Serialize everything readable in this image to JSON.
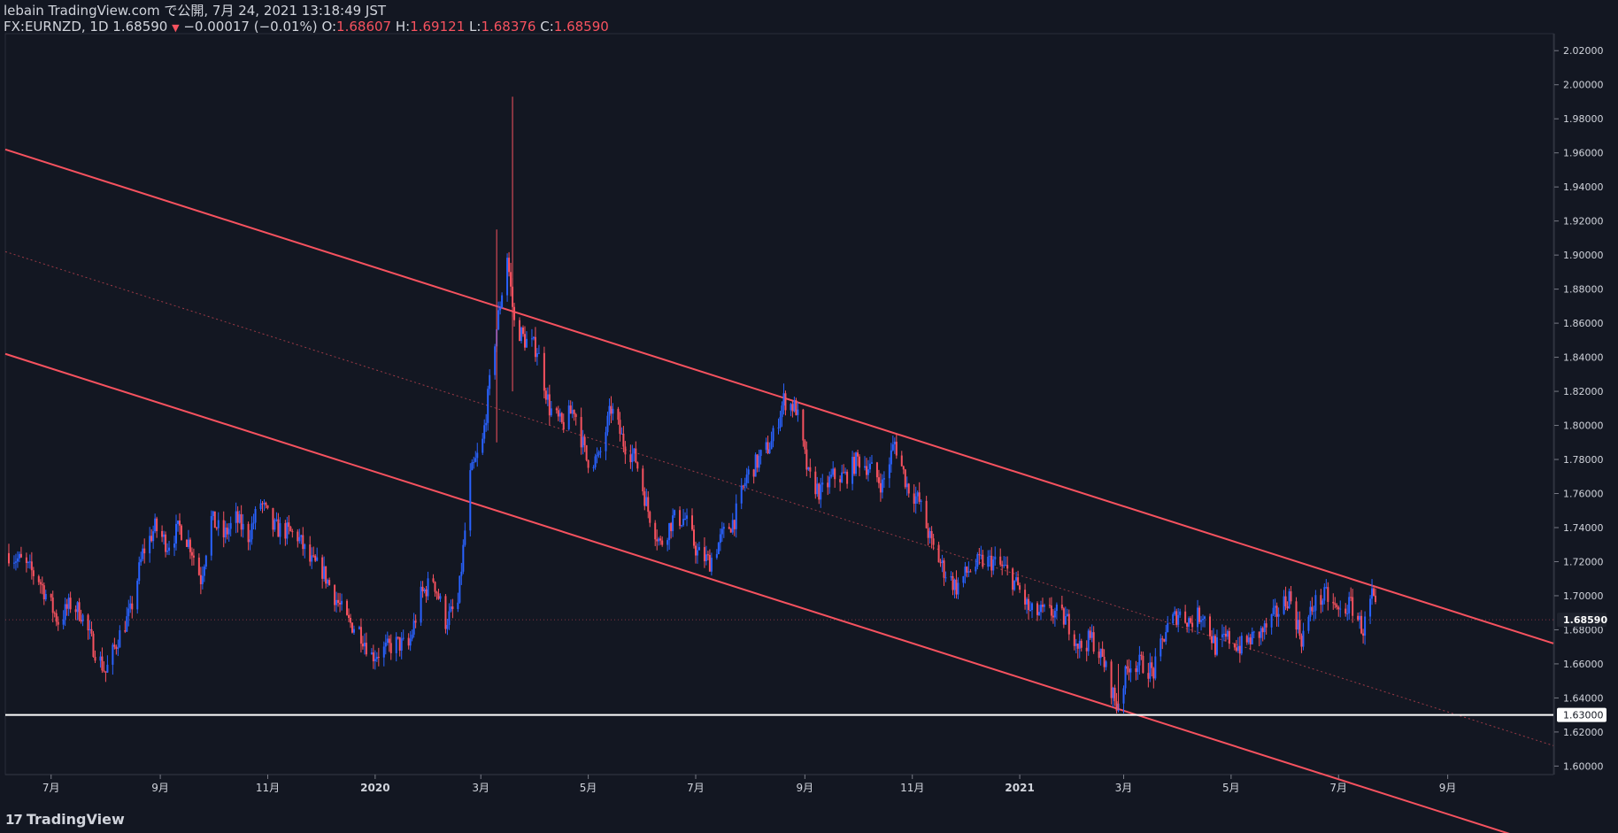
{
  "header": {
    "line1": "lebain TradingView.com で公開, 7月 24, 2021 13:18:49 JST",
    "symbol": "FX:EURNZD, 1D",
    "last": "1.68590",
    "change_arrow": "▼",
    "change": "−0.00017 (−0.01%)",
    "o_label": "O:",
    "o_value": "1.68607",
    "h_label": "H:",
    "h_value": "1.69121",
    "l_label": "L:",
    "l_value": "1.68376",
    "c_label": "C:",
    "c_value": "1.68590"
  },
  "footer": {
    "brand": "TradingView",
    "mark": "17"
  },
  "colors": {
    "background": "#131722",
    "up": "#2962ff",
    "down": "#f7525f",
    "trendline": "#f7525f",
    "hline": "#ffffff",
    "text": "#d1d4dc"
  },
  "chart_data": {
    "type": "candlestick",
    "symbol": "FX:EURNZD",
    "interval": "1D",
    "ylim": [
      1.595,
      2.03
    ],
    "y_ticks": [
      1.6,
      1.62,
      1.64,
      1.66,
      1.68,
      1.7,
      1.72,
      1.74,
      1.76,
      1.78,
      1.8,
      1.82,
      1.84,
      1.86,
      1.88,
      1.9,
      1.92,
      1.94,
      1.96,
      1.98,
      2.0,
      2.02
    ],
    "x_ticks": [
      {
        "label": "7月",
        "date": "2019-07-01"
      },
      {
        "label": "9月",
        "date": "2019-09-01"
      },
      {
        "label": "11月",
        "date": "2019-11-01"
      },
      {
        "label": "2020",
        "date": "2020-01-01",
        "bold": true
      },
      {
        "label": "3月",
        "date": "2020-03-01"
      },
      {
        "label": "5月",
        "date": "2020-05-01"
      },
      {
        "label": "7月",
        "date": "2020-07-01"
      },
      {
        "label": "9月",
        "date": "2020-09-01"
      },
      {
        "label": "11月",
        "date": "2020-11-01"
      },
      {
        "label": "2021",
        "date": "2021-01-01",
        "bold": true
      },
      {
        "label": "3月",
        "date": "2021-03-01"
      },
      {
        "label": "5月",
        "date": "2021-05-01"
      },
      {
        "label": "7月",
        "date": "2021-07-01"
      },
      {
        "label": "9月",
        "date": "2021-09-01"
      }
    ],
    "close_path": [
      [
        "2019-06-07",
        1.725
      ],
      [
        "2019-06-14",
        1.72
      ],
      [
        "2019-06-24",
        1.71
      ],
      [
        "2019-07-05",
        1.685
      ],
      [
        "2019-07-12",
        1.695
      ],
      [
        "2019-07-18",
        1.69
      ],
      [
        "2019-07-25",
        1.67
      ],
      [
        "2019-08-01",
        1.655
      ],
      [
        "2019-08-08",
        1.675
      ],
      [
        "2019-08-15",
        1.69
      ],
      [
        "2019-08-22",
        1.725
      ],
      [
        "2019-08-29",
        1.74
      ],
      [
        "2019-09-05",
        1.73
      ],
      [
        "2019-09-12",
        1.74
      ],
      [
        "2019-09-18",
        1.73
      ],
      [
        "2019-09-24",
        1.71
      ],
      [
        "2019-09-30",
        1.745
      ],
      [
        "2019-10-07",
        1.735
      ],
      [
        "2019-10-14",
        1.745
      ],
      [
        "2019-10-21",
        1.735
      ],
      [
        "2019-10-28",
        1.755
      ],
      [
        "2019-11-04",
        1.74
      ],
      [
        "2019-11-11",
        1.738
      ],
      [
        "2019-11-18",
        1.735
      ],
      [
        "2019-11-25",
        1.72
      ],
      [
        "2019-12-02",
        1.715
      ],
      [
        "2019-12-09",
        1.7
      ],
      [
        "2019-12-16",
        1.685
      ],
      [
        "2019-12-23",
        1.68
      ],
      [
        "2019-12-30",
        1.665
      ],
      [
        "2020-01-06",
        1.668
      ],
      [
        "2020-01-13",
        1.672
      ],
      [
        "2020-01-20",
        1.67
      ],
      [
        "2020-01-27",
        1.7
      ],
      [
        "2020-02-03",
        1.71
      ],
      [
        "2020-02-10",
        1.685
      ],
      [
        "2020-02-17",
        1.695
      ],
      [
        "2020-02-24",
        1.77
      ],
      [
        "2020-03-02",
        1.79
      ],
      [
        "2020-03-09",
        1.85
      ],
      [
        "2020-03-16",
        1.9
      ],
      [
        "2020-03-20",
        1.86
      ],
      [
        "2020-03-26",
        1.85
      ],
      [
        "2020-04-02",
        1.845
      ],
      [
        "2020-04-09",
        1.81
      ],
      [
        "2020-04-16",
        1.8
      ],
      [
        "2020-04-23",
        1.81
      ],
      [
        "2020-04-30",
        1.78
      ],
      [
        "2020-05-07",
        1.78
      ],
      [
        "2020-05-14",
        1.81
      ],
      [
        "2020-05-21",
        1.79
      ],
      [
        "2020-05-28",
        1.78
      ],
      [
        "2020-06-04",
        1.75
      ],
      [
        "2020-06-11",
        1.73
      ],
      [
        "2020-06-18",
        1.745
      ],
      [
        "2020-06-25",
        1.745
      ],
      [
        "2020-07-02",
        1.725
      ],
      [
        "2020-07-09",
        1.72
      ],
      [
        "2020-07-16",
        1.735
      ],
      [
        "2020-07-23",
        1.745
      ],
      [
        "2020-07-30",
        1.77
      ],
      [
        "2020-08-06",
        1.78
      ],
      [
        "2020-08-13",
        1.79
      ],
      [
        "2020-08-20",
        1.815
      ],
      [
        "2020-08-27",
        1.81
      ],
      [
        "2020-09-03",
        1.77
      ],
      [
        "2020-09-10",
        1.76
      ],
      [
        "2020-09-17",
        1.77
      ],
      [
        "2020-09-24",
        1.77
      ],
      [
        "2020-10-01",
        1.78
      ],
      [
        "2020-10-08",
        1.775
      ],
      [
        "2020-10-15",
        1.765
      ],
      [
        "2020-10-22",
        1.79
      ],
      [
        "2020-10-29",
        1.765
      ],
      [
        "2020-11-05",
        1.755
      ],
      [
        "2020-11-12",
        1.73
      ],
      [
        "2020-11-19",
        1.715
      ],
      [
        "2020-11-26",
        1.705
      ],
      [
        "2020-12-03",
        1.715
      ],
      [
        "2020-12-10",
        1.72
      ],
      [
        "2020-12-17",
        1.72
      ],
      [
        "2020-12-24",
        1.715
      ],
      [
        "2020-12-31",
        1.705
      ],
      [
        "2021-01-07",
        1.69
      ],
      [
        "2021-01-14",
        1.69
      ],
      [
        "2021-01-21",
        1.69
      ],
      [
        "2021-01-28",
        1.685
      ],
      [
        "2021-02-04",
        1.67
      ],
      [
        "2021-02-11",
        1.675
      ],
      [
        "2021-02-18",
        1.66
      ],
      [
        "2021-02-25",
        1.635
      ],
      [
        "2021-03-04",
        1.66
      ],
      [
        "2021-03-11",
        1.66
      ],
      [
        "2021-03-18",
        1.655
      ],
      [
        "2021-03-25",
        1.68
      ],
      [
        "2021-04-01",
        1.69
      ],
      [
        "2021-04-08",
        1.685
      ],
      [
        "2021-04-15",
        1.69
      ],
      [
        "2021-04-22",
        1.67
      ],
      [
        "2021-04-29",
        1.675
      ],
      [
        "2021-05-06",
        1.67
      ],
      [
        "2021-05-13",
        1.675
      ],
      [
        "2021-05-20",
        1.68
      ],
      [
        "2021-05-27",
        1.69
      ],
      [
        "2021-06-03",
        1.7
      ],
      [
        "2021-06-10",
        1.675
      ],
      [
        "2021-06-17",
        1.695
      ],
      [
        "2021-06-24",
        1.7
      ],
      [
        "2021-07-01",
        1.69
      ],
      [
        "2021-07-08",
        1.695
      ],
      [
        "2021-07-15",
        1.68
      ],
      [
        "2021-07-20",
        1.7
      ],
      [
        "2021-07-23",
        1.6859
      ]
    ],
    "spikes": [
      {
        "date": "2020-03-19",
        "high": 1.993,
        "low": 1.82
      },
      {
        "date": "2020-03-10",
        "high": 1.915,
        "low": 1.79
      },
      {
        "date": "2021-02-26",
        "high": 1.66,
        "low": 1.633
      }
    ],
    "channel": {
      "upper": [
        [
          "2019-06-05",
          1.962
        ],
        [
          "2021-10-31",
          1.672
        ]
      ],
      "lower": [
        [
          "2019-06-05",
          1.842
        ],
        [
          "2021-10-31",
          1.552
        ]
      ],
      "mid": [
        [
          "2019-06-05",
          1.902
        ],
        [
          "2021-10-31",
          1.612
        ]
      ]
    },
    "hline": {
      "value": 1.63,
      "label": "1.63000"
    },
    "last_price": {
      "value": 1.6859,
      "label": "1.68590"
    }
  }
}
